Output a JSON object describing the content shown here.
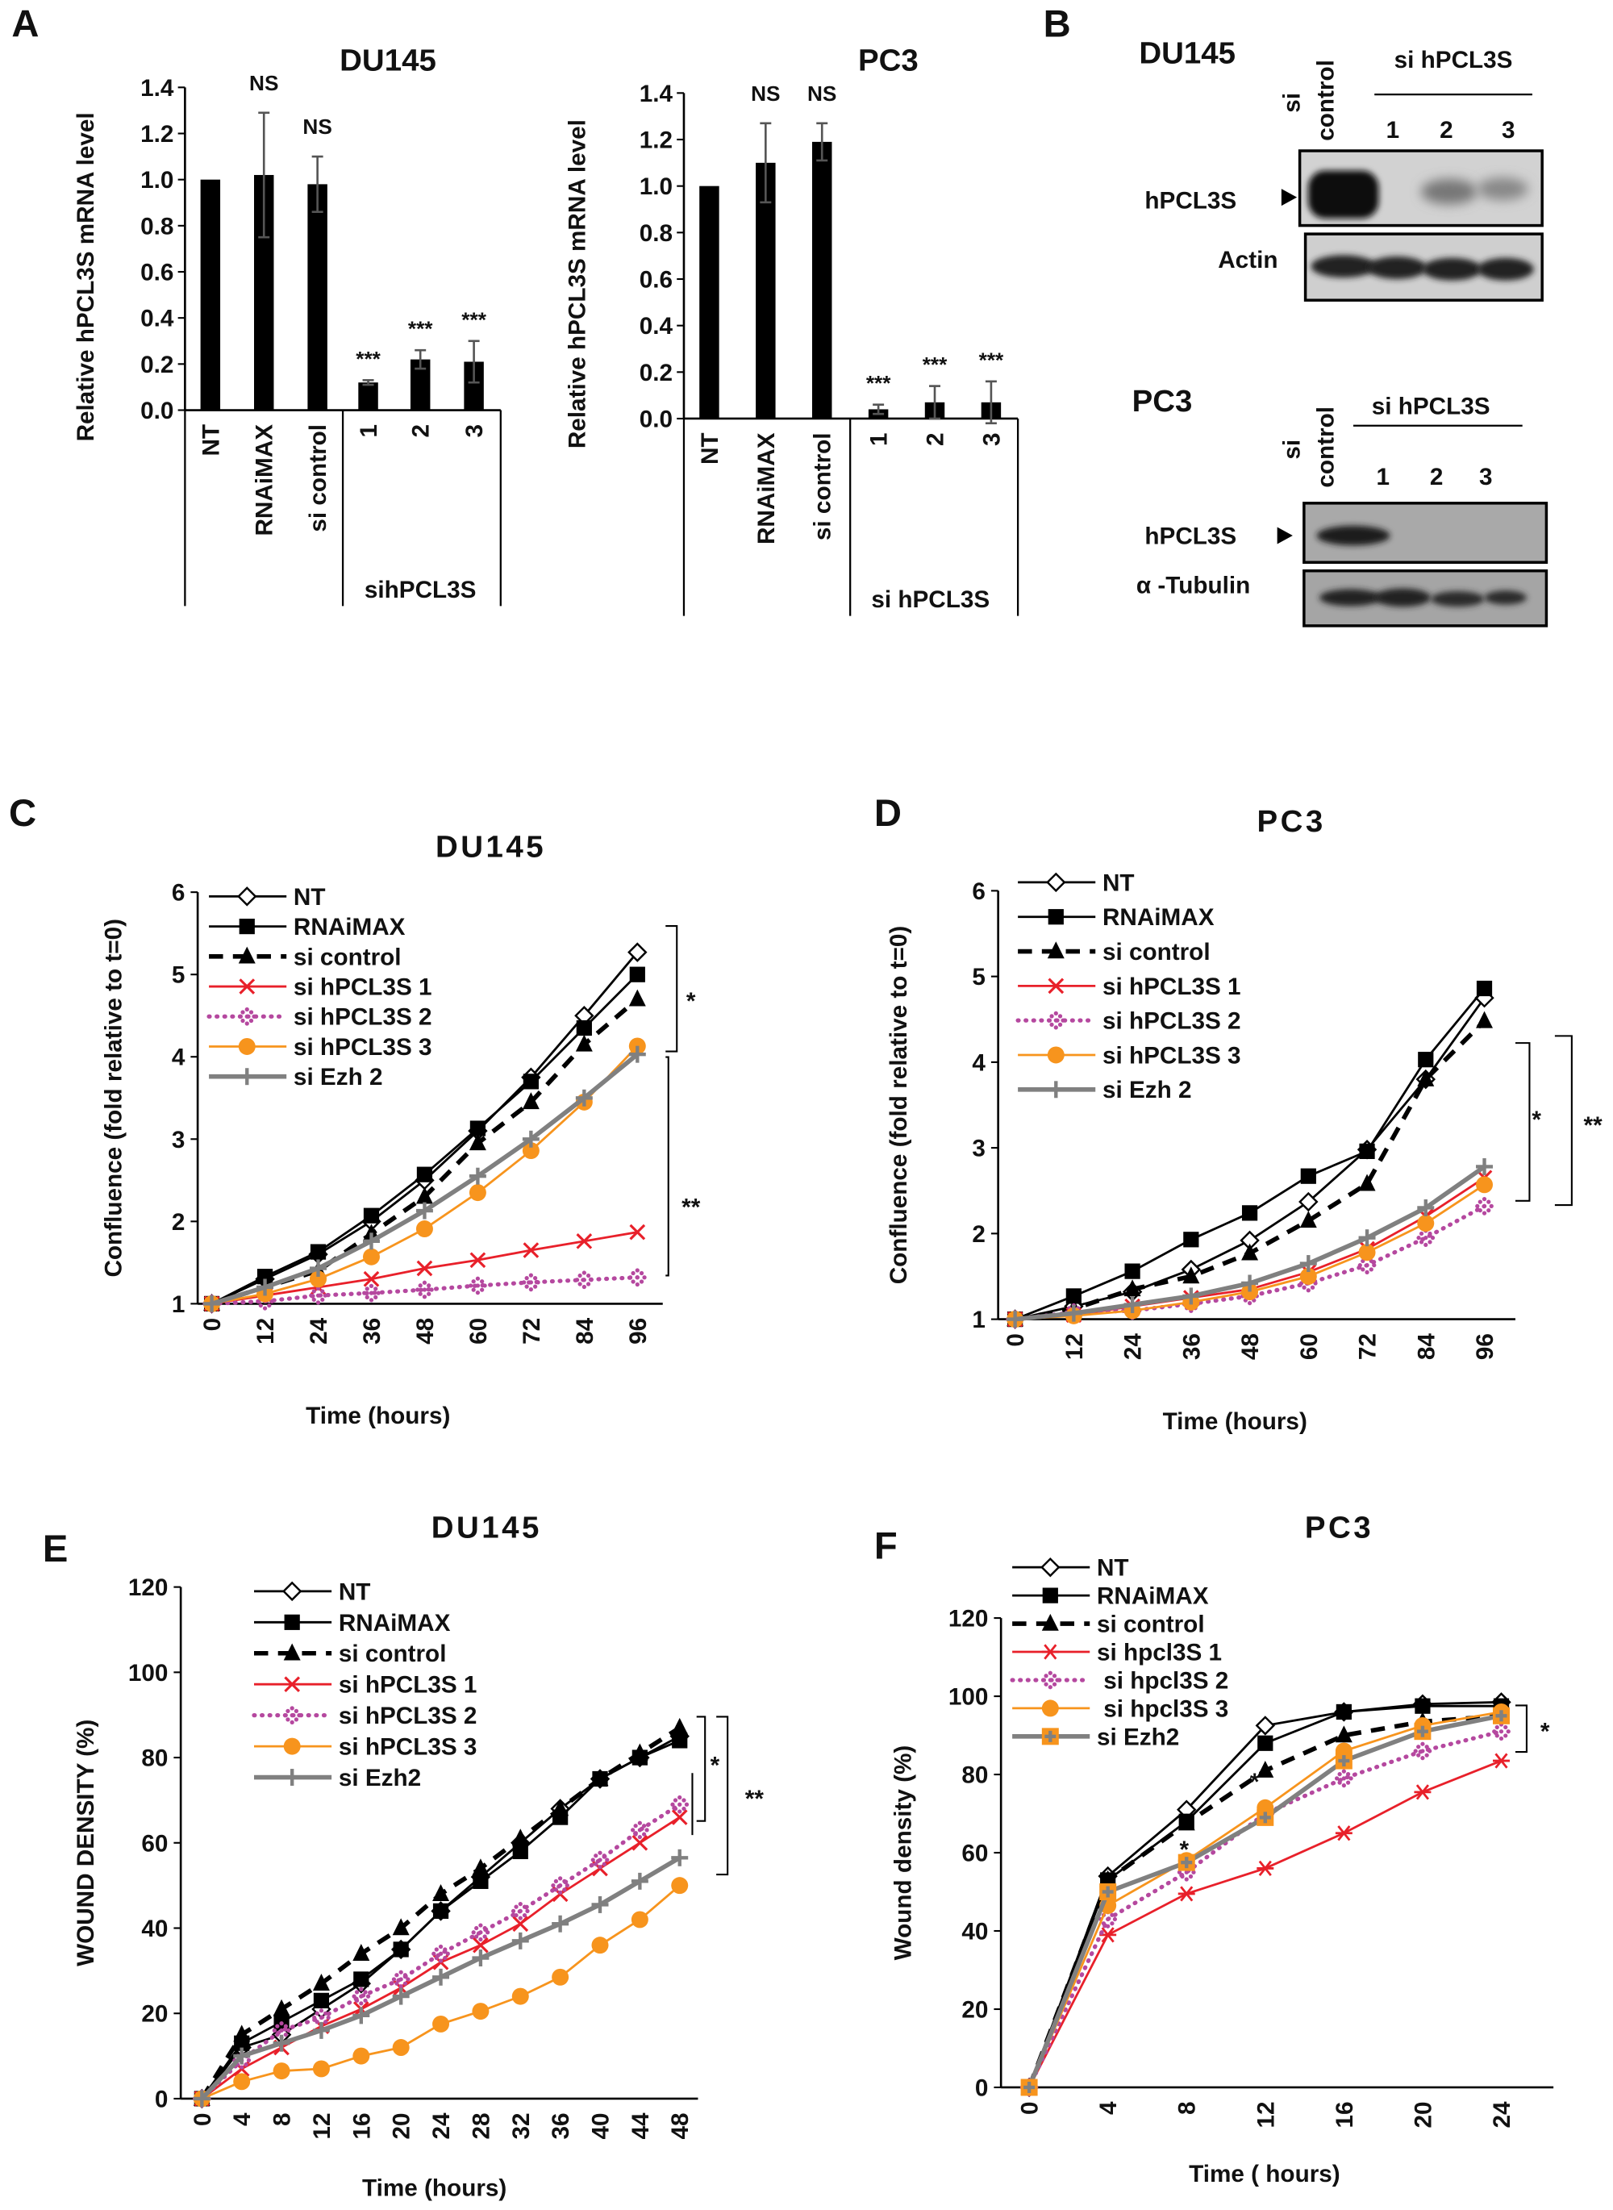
{
  "panels": {
    "A": "A",
    "B": "B",
    "C": "C",
    "D": "D",
    "E": "E",
    "F": "F"
  },
  "blots": {
    "du145": {
      "title": "DU145",
      "lane_si": "si",
      "lane_control": "control",
      "group": "si hPCL3S",
      "lanes": [
        "1",
        "2",
        "3"
      ],
      "rows": [
        "hPCL3S",
        "Actin"
      ]
    },
    "pc3": {
      "title": "PC3",
      "lane_si": "si",
      "lane_control": "control",
      "group": "si hPCL3S",
      "lanes": [
        "1",
        "2",
        "3"
      ],
      "rows": [
        "hPCL3S",
        "α -Tubulin"
      ]
    }
  },
  "chart_data": [
    {
      "type": "bar",
      "title": "DU145",
      "ylabel": "Relative hPCL3S mRNA level",
      "categories": [
        "NT",
        "RNAiMAX",
        "si control",
        "1",
        "2",
        "3"
      ],
      "group_label": "sihPCL3S",
      "values": [
        1.0,
        1.02,
        0.98,
        0.12,
        0.22,
        0.21
      ],
      "errors": [
        0.0,
        0.27,
        0.12,
        0.01,
        0.04,
        0.09
      ],
      "significance": [
        "",
        "NS",
        "NS",
        "***",
        "***",
        "***"
      ],
      "ylim": [
        0,
        1.4
      ],
      "yticks": [
        "0.0",
        "0.2",
        "0.4",
        "0.6",
        "0.8",
        "1.0",
        "1.2",
        "1.4"
      ],
      "color": "#000000"
    },
    {
      "type": "bar",
      "title": "PC3",
      "ylabel": "Relative hPCL3S mRNA level",
      "categories": [
        "NT",
        "RNAiMAX",
        "si control",
        "1",
        "2",
        "3"
      ],
      "group_label": "si hPCL3S",
      "values": [
        1.0,
        1.1,
        1.19,
        0.04,
        0.07,
        0.07
      ],
      "errors": [
        0.0,
        0.17,
        0.08,
        0.02,
        0.07,
        0.09
      ],
      "significance": [
        "",
        "NS",
        "NS",
        "***",
        "***",
        "***"
      ],
      "ylim": [
        0,
        1.4
      ],
      "yticks": [
        "0.0",
        "0.2",
        "0.4",
        "0.6",
        "0.8",
        "1.0",
        "1.2",
        "1.4"
      ],
      "color": "#000000"
    },
    {
      "type": "line",
      "title": "DU145",
      "xlabel": "Time (hours)",
      "ylabel": "Confluence (fold relative to t=0)",
      "x": [
        0,
        12,
        24,
        36,
        48,
        60,
        72,
        84,
        96
      ],
      "xlim": [
        0,
        96
      ],
      "ylim": [
        1,
        6
      ],
      "yticks": [
        1,
        2,
        3,
        4,
        5,
        6
      ],
      "legend": "top-left",
      "series": [
        {
          "name": "NT",
          "color": "#000000",
          "marker": "open-diamond",
          "line": "solid",
          "values": [
            1,
            1.3,
            1.6,
            2.0,
            2.5,
            3.1,
            3.75,
            4.5,
            5.27
          ]
        },
        {
          "name": "RNAiMAX",
          "color": "#000000",
          "marker": "filled-square",
          "line": "solid",
          "values": [
            1,
            1.33,
            1.63,
            2.07,
            2.57,
            3.13,
            3.7,
            4.35,
            5.0
          ]
        },
        {
          "name": "si control",
          "color": "#000000",
          "marker": "filled-triangle",
          "line": "dashed",
          "values": [
            1,
            1.2,
            1.4,
            1.85,
            2.3,
            2.95,
            3.45,
            4.15,
            4.7
          ]
        },
        {
          "name": "si hPCL3S 1",
          "color": "#e8202a",
          "marker": "x",
          "line": "solid",
          "values": [
            1,
            1.1,
            1.2,
            1.3,
            1.43,
            1.53,
            1.65,
            1.76,
            1.87
          ]
        },
        {
          "name": "si hPCL3S 2",
          "color": "#b5489f",
          "marker": "dotted-cross",
          "line": "dotted",
          "values": [
            1,
            1.03,
            1.1,
            1.13,
            1.17,
            1.22,
            1.26,
            1.29,
            1.32
          ]
        },
        {
          "name": "si hPCL3S 3",
          "color": "#f7941d",
          "marker": "filled-circle",
          "line": "solid",
          "values": [
            1,
            1.12,
            1.3,
            1.57,
            1.91,
            2.35,
            2.86,
            3.45,
            4.13
          ]
        },
        {
          "name": "si Ezh 2",
          "color": "#808080",
          "marker": "plus",
          "line": "thick",
          "values": [
            1,
            1.2,
            1.43,
            1.76,
            2.13,
            2.55,
            3.0,
            3.5,
            4.03
          ]
        }
      ],
      "annotations": [
        {
          "text": "*"
        },
        {
          "text": "**"
        }
      ]
    },
    {
      "type": "line",
      "title": "PC3",
      "xlabel": "Time (hours)",
      "ylabel": "Confluence (fold relative to t=0)",
      "x": [
        0,
        12,
        24,
        36,
        48,
        60,
        72,
        84,
        96
      ],
      "xlim": [
        0,
        96
      ],
      "ylim": [
        1,
        6
      ],
      "yticks": [
        1,
        2,
        3,
        4,
        5,
        6
      ],
      "legend": "top-left",
      "series": [
        {
          "name": "NT",
          "color": "#000000",
          "marker": "open-diamond",
          "line": "solid",
          "values": [
            1,
            1.15,
            1.32,
            1.58,
            1.92,
            2.37,
            2.98,
            3.8,
            4.75
          ]
        },
        {
          "name": "RNAiMAX",
          "color": "#000000",
          "marker": "filled-square",
          "line": "solid",
          "values": [
            1,
            1.27,
            1.56,
            1.93,
            2.24,
            2.67,
            2.96,
            4.03,
            4.86
          ]
        },
        {
          "name": "si control",
          "color": "#000000",
          "marker": "filled-triangle",
          "line": "dashed",
          "values": [
            1,
            1.12,
            1.35,
            1.5,
            1.77,
            2.15,
            2.58,
            3.8,
            4.48
          ]
        },
        {
          "name": "si hPCL3S 1",
          "color": "#e8202a",
          "marker": "x",
          "line": "solid",
          "values": [
            1,
            1.05,
            1.15,
            1.25,
            1.35,
            1.55,
            1.82,
            2.2,
            2.65
          ]
        },
        {
          "name": "si hPCL3S 2",
          "color": "#b5489f",
          "marker": "dotted-cross",
          "line": "dotted",
          "values": [
            1,
            1.08,
            1.1,
            1.18,
            1.27,
            1.42,
            1.63,
            1.95,
            2.32
          ]
        },
        {
          "name": "si hPCL3S 3",
          "color": "#f7941d",
          "marker": "filled-circle",
          "line": "solid",
          "values": [
            1,
            1.04,
            1.1,
            1.2,
            1.32,
            1.5,
            1.78,
            2.12,
            2.57
          ]
        },
        {
          "name": "si Ezh 2",
          "color": "#808080",
          "marker": "plus",
          "line": "thick",
          "values": [
            1,
            1.07,
            1.17,
            1.27,
            1.42,
            1.65,
            1.95,
            2.3,
            2.78
          ]
        }
      ],
      "annotations": [
        {
          "text": "*"
        },
        {
          "text": "**"
        }
      ]
    },
    {
      "type": "line",
      "title": "DU145",
      "xlabel": "Time (hours)",
      "ylabel": "WOUND DENSITY (%)",
      "x": [
        0,
        4,
        8,
        12,
        16,
        20,
        24,
        28,
        32,
        36,
        40,
        44,
        48
      ],
      "xlim": [
        0,
        48
      ],
      "ylim": [
        0,
        120
      ],
      "yticks": [
        0,
        20,
        40,
        60,
        80,
        100,
        120
      ],
      "legend": "top-center",
      "series": [
        {
          "name": "NT",
          "color": "#000000",
          "marker": "open-diamond",
          "line": "solid",
          "values": [
            0,
            12,
            15,
            21,
            27,
            35,
            44,
            52,
            60,
            68,
            75,
            80,
            85
          ]
        },
        {
          "name": "RNAiMAX",
          "color": "#000000",
          "marker": "filled-square",
          "line": "solid",
          "values": [
            0,
            13,
            18,
            23,
            28,
            35,
            44,
            51,
            58,
            66,
            75,
            80,
            84
          ]
        },
        {
          "name": "si control",
          "color": "#000000",
          "marker": "filled-triangle",
          "line": "dashed",
          "values": [
            0,
            15,
            21,
            27,
            34,
            40,
            48,
            54,
            61,
            68,
            75,
            81,
            87
          ]
        },
        {
          "name": "si hPCL3S 1",
          "color": "#e8202a",
          "marker": "x",
          "line": "solid",
          "values": [
            0,
            7,
            12,
            17,
            21,
            26,
            32,
            36,
            41,
            48,
            54,
            60,
            66
          ]
        },
        {
          "name": "si hPCL3S 2",
          "color": "#b5489f",
          "marker": "dotted-cross",
          "line": "dotted",
          "values": [
            0,
            9,
            16,
            19,
            24,
            28,
            34,
            39,
            44,
            50,
            56,
            63,
            69
          ]
        },
        {
          "name": "si hPCL3S 3",
          "color": "#f7941d",
          "marker": "filled-circle",
          "line": "solid",
          "values": [
            0,
            4,
            6.5,
            7,
            10,
            12,
            17.5,
            20.5,
            24,
            28.5,
            36,
            42,
            50
          ]
        },
        {
          "name": "si Ezh2",
          "color": "#808080",
          "marker": "plus",
          "line": "thick",
          "values": [
            0,
            10,
            13,
            16,
            19.5,
            24,
            28.5,
            33,
            37,
            41,
            45.5,
            51,
            56.5
          ]
        }
      ],
      "annotations": [
        {
          "text": "*"
        },
        {
          "text": "**"
        }
      ]
    },
    {
      "type": "line",
      "title": "PC3",
      "xlabel": "Time ( hours)",
      "ylabel": "Wound density (%)",
      "x": [
        0,
        4,
        8,
        12,
        16,
        20,
        24
      ],
      "xlim": [
        0,
        24
      ],
      "ylim": [
        0,
        120
      ],
      "yticks": [
        0,
        20,
        40,
        60,
        80,
        100,
        120
      ],
      "legend": "top-left",
      "series": [
        {
          "name": "NT",
          "color": "#000000",
          "marker": "open-diamond",
          "line": "solid",
          "values": [
            0,
            54,
            71,
            92.5,
            96,
            98,
            98.5
          ]
        },
        {
          "name": "RNAiMAX",
          "color": "#000000",
          "marker": "filled-square",
          "line": "solid",
          "values": [
            0,
            53,
            68,
            88,
            96,
            97.5,
            97.5
          ]
        },
        {
          "name": "si control",
          "color": "#000000",
          "marker": "filled-triangle",
          "line": "dashed",
          "values": [
            0,
            53,
            67.5,
            81,
            90,
            93.5,
            95
          ]
        },
        {
          "name": "si hpcl3S 1",
          "color": "#e8202a",
          "marker": "asterisk",
          "line": "solid",
          "values": [
            0,
            39,
            49.5,
            56,
            65,
            75.5,
            83.5
          ]
        },
        {
          "name": " si hpcl3S 2",
          "color": "#b5489f",
          "marker": "dotted-cross",
          "line": "dotted",
          "values": [
            0,
            43,
            55,
            70,
            79,
            86,
            91
          ]
        },
        {
          "name": " si hpcl3S 3",
          "color": "#f7941d",
          "marker": "filled-circle",
          "line": "solid",
          "values": [
            0,
            46.5,
            58,
            71.5,
            86,
            92.5,
            96
          ]
        },
        {
          "name": "si Ezh2",
          "color": "#808080",
          "marker": "square-plus",
          "line": "thick",
          "values": [
            0,
            50,
            57.5,
            69,
            83.5,
            91,
            95
          ]
        }
      ],
      "annotations": [
        {
          "text": "*"
        },
        {
          "text": "*"
        },
        {
          "text": "*"
        }
      ]
    }
  ]
}
